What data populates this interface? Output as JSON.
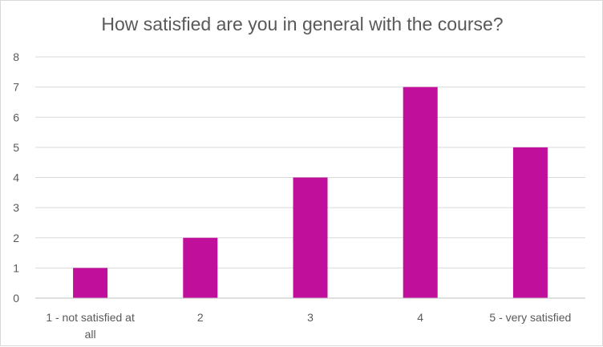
{
  "chart_data": {
    "type": "bar",
    "title": "How satisfied are you in general with the course?",
    "categories": [
      "1 - not satisfied at all",
      "2",
      "3",
      "4",
      "5 - very satisfied"
    ],
    "category_label_lines": [
      [
        "1 - not satisfied at",
        "all"
      ],
      [
        "2"
      ],
      [
        "3"
      ],
      [
        "4"
      ],
      [
        "5 - very satisfied"
      ]
    ],
    "values": [
      1,
      2,
      4,
      7,
      5
    ],
    "ylim": [
      0,
      8
    ],
    "yticks": [
      0,
      1,
      2,
      3,
      4,
      5,
      6,
      7,
      8
    ],
    "grid": true,
    "legend": "none",
    "xlabel": "",
    "ylabel": "",
    "bar_color": "#c00f9b",
    "grid_color": "#d9d9d9",
    "axis_color": "#bfbfbf",
    "text_color": "#595959"
  }
}
